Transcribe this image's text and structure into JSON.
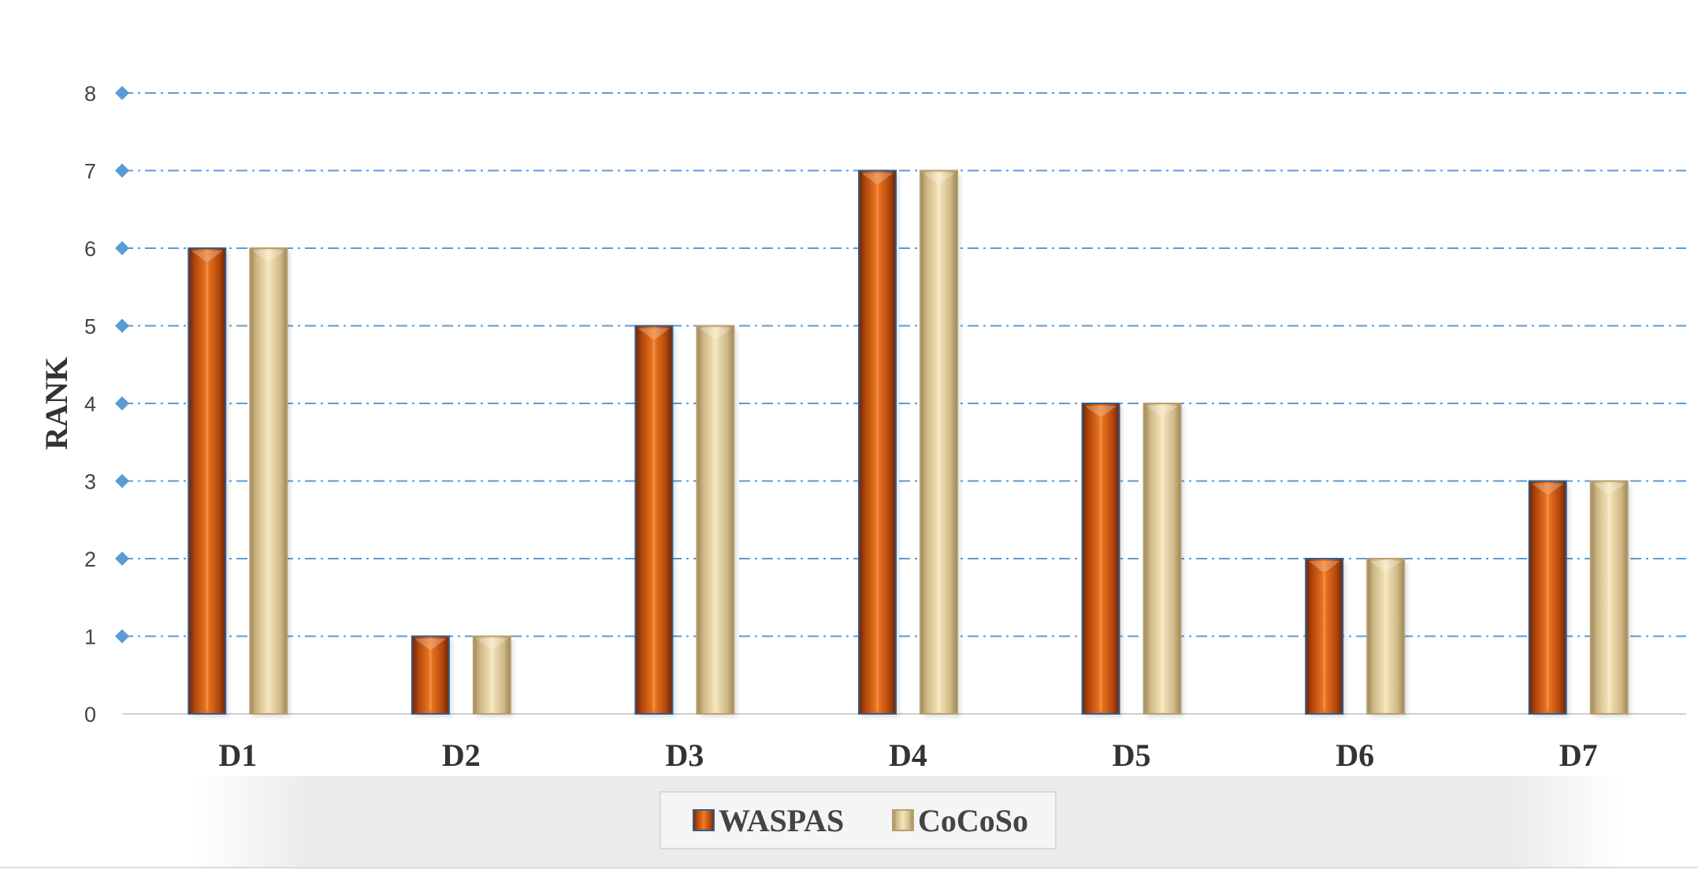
{
  "chart_data": {
    "type": "bar",
    "categories": [
      "D1",
      "D2",
      "D3",
      "D4",
      "D5",
      "D6",
      "D7"
    ],
    "series": [
      {
        "name": "WASPAS",
        "values": [
          6,
          1,
          5,
          7,
          4,
          2,
          3
        ],
        "color": "#d8661a"
      },
      {
        "name": "CoCoSo",
        "values": [
          6,
          1,
          5,
          7,
          4,
          2,
          3
        ],
        "color": "#e6cf9a"
      }
    ],
    "title": "",
    "xlabel": "",
    "ylabel": "RANK",
    "ylim": [
      0,
      8
    ],
    "yticks": [
      0,
      1,
      2,
      3,
      4,
      5,
      6,
      7,
      8
    ],
    "grid": true,
    "legend": "bottom-center"
  }
}
